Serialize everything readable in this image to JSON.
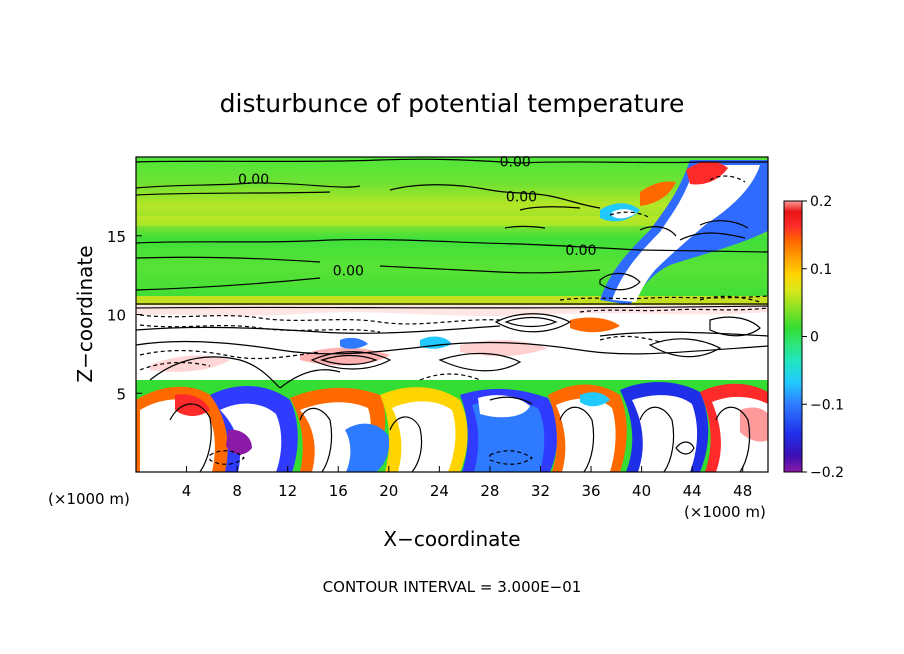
{
  "chart_data": {
    "type": "heatmap",
    "title": "disturbunce of potential temperature",
    "xlabel": "X−coordinate",
    "ylabel": "Z−coordinate",
    "x_unit": "(×1000 m)",
    "z_unit": "(×1000 m)",
    "xlim": [
      0,
      50
    ],
    "ylim": [
      0,
      20
    ],
    "x_ticks": [
      4,
      8,
      12,
      16,
      20,
      24,
      28,
      32,
      36,
      40,
      44,
      48
    ],
    "y_ticks": [
      5,
      10,
      15
    ],
    "colorbar": {
      "min": -0.2,
      "max": 0.2,
      "ticks": [
        {
          "value": 0.2,
          "label": "0.2"
        },
        {
          "value": 0.1,
          "label": "0.1"
        },
        {
          "value": 0.0,
          "label": "0"
        },
        {
          "value": -0.1,
          "label": "−0.1"
        },
        {
          "value": -0.2,
          "label": "−0.2"
        }
      ],
      "colors": [
        "#8b1aa8",
        "#3b0fb4",
        "#1f2fe8",
        "#2f7bff",
        "#22c9ff",
        "#22e6c0",
        "#2ce67a",
        "#33dd33",
        "#86e023",
        "#d8e81a",
        "#ffd400",
        "#ffa000",
        "#ff6a00",
        "#ff2a2a",
        "#e81414",
        "#ff9a9a"
      ]
    },
    "contour_labels": [
      {
        "x": 9.3,
        "z": 18.6,
        "text": "0.00"
      },
      {
        "x": 30.0,
        "z": 19.7,
        "text": "0.00"
      },
      {
        "x": 30.5,
        "z": 17.5,
        "text": "0.00"
      },
      {
        "x": 35.2,
        "z": 14.1,
        "text": "0.00"
      },
      {
        "x": 16.8,
        "z": 12.8,
        "text": "0.00"
      }
    ],
    "contour_interval_text": "CONTOUR INTERVAL = 3.000E−01",
    "regions": [
      {
        "z": [
          0,
          5.5
        ],
        "value": "mixed, strong ±0.2"
      },
      {
        "z": [
          5.5,
          10.5
        ],
        "value": "near 0 with dense contours"
      },
      {
        "z": [
          10.5,
          20
        ],
        "value": "≈0.0"
      }
    ]
  }
}
